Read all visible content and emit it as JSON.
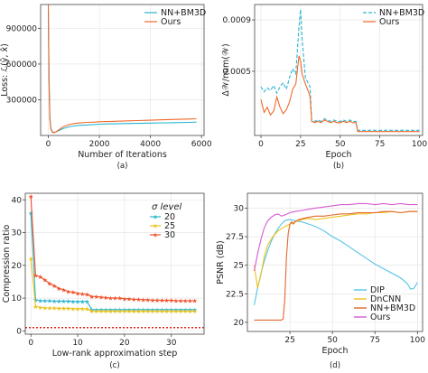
{
  "chart_data": [
    {
      "id": "a",
      "type": "line",
      "caption": "(a)",
      "xlabel": "Number of Iterations",
      "ylabel": "Loss: ℒ(ŷ, x̂)",
      "xlim": [
        -300,
        6100
      ],
      "ylim": [
        0,
        1100000
      ],
      "xticks": [
        0,
        2000,
        4000,
        6000
      ],
      "yticks": [
        300000,
        600000,
        900000
      ],
      "ytick_labels": [
        "300000",
        "600000",
        "900000"
      ],
      "grid": true,
      "legend": "top-right",
      "series": [
        {
          "name": "NN+BM3D",
          "color": "#2ab5cf",
          "dash": "",
          "x": [
            0,
            30,
            60,
            100,
            150,
            200,
            300,
            400,
            500,
            600,
            800,
            1000,
            1200,
            1500,
            1800,
            2000,
            2500,
            3000,
            3500,
            4000,
            4500,
            5000,
            5500,
            5800
          ],
          "y": [
            1050000,
            500000,
            160000,
            60000,
            35000,
            25000,
            30000,
            40000,
            50000,
            60000,
            72000,
            80000,
            85000,
            88000,
            92000,
            95000,
            98000,
            100000,
            102000,
            104000,
            106000,
            108000,
            110000,
            112000
          ]
        },
        {
          "name": "Ours",
          "color": "#f0692a",
          "dash": "",
          "x": [
            0,
            30,
            60,
            100,
            150,
            200,
            300,
            400,
            500,
            600,
            800,
            1000,
            1200,
            1500,
            1800,
            2000,
            2500,
            3000,
            3500,
            4000,
            4500,
            5000,
            5500,
            5800
          ],
          "y": [
            1100000,
            450000,
            140000,
            55000,
            30000,
            22000,
            30000,
            45000,
            60000,
            75000,
            90000,
            100000,
            105000,
            110000,
            112000,
            115000,
            118000,
            122000,
            125000,
            128000,
            132000,
            135000,
            138000,
            140000
          ]
        }
      ]
    },
    {
      "id": "b",
      "type": "line",
      "caption": "(b)",
      "xlabel": "Epoch",
      "ylabel": "Δ𝒲/num(𝒲)",
      "xlim": [
        -4,
        102
      ],
      "ylim": [
        0,
        0.00102
      ],
      "xticks": [
        0,
        25,
        50,
        75,
        100
      ],
      "xtick_labels": [
        "0",
        "25",
        "50",
        "75",
        "100"
      ],
      "yticks": [
        0.0005,
        0.0009
      ],
      "ytick_labels": [
        "0.0005",
        "0.0009"
      ],
      "grid": true,
      "legend": "top-right",
      "series": [
        {
          "name": "NN+BM3D",
          "color": "#2ab5cf",
          "dash": "4,2",
          "x": [
            0,
            2,
            4,
            6,
            8,
            10,
            12,
            14,
            16,
            18,
            20,
            22,
            24,
            25,
            26,
            28,
            30,
            31,
            32,
            34,
            36,
            38,
            40,
            42,
            44,
            46,
            48,
            50,
            52,
            54,
            56,
            58,
            60,
            61,
            62,
            64,
            66,
            68,
            70,
            72,
            74,
            76,
            78,
            80,
            82,
            84,
            86,
            88,
            90,
            92,
            94,
            96,
            98,
            100
          ],
          "y": [
            0.00038,
            0.00034,
            0.00037,
            0.00035,
            0.00039,
            0.00033,
            0.00038,
            0.00041,
            0.00036,
            0.00045,
            0.00052,
            0.00048,
            0.00085,
            0.00098,
            0.00075,
            0.00045,
            0.0004,
            0.00038,
            0.00012,
            0.00011,
            0.00012,
            0.00011,
            0.00013,
            0.00012,
            0.00011,
            0.00012,
            0.00011,
            0.00011,
            0.00012,
            0.00011,
            0.00012,
            0.00011,
            0.00011,
            4e-05,
            4e-05,
            4e-05,
            4e-05,
            4e-05,
            4e-05,
            4e-05,
            4e-05,
            4e-05,
            4e-05,
            4e-05,
            4e-05,
            4e-05,
            4e-05,
            4e-05,
            4e-05,
            4e-05,
            4e-05,
            4e-05,
            4e-05,
            4e-05
          ]
        },
        {
          "name": "Ours",
          "color": "#f0692a",
          "dash": "",
          "x": [
            0,
            2,
            4,
            6,
            8,
            10,
            12,
            14,
            16,
            18,
            20,
            22,
            24,
            25,
            26,
            28,
            30,
            31,
            32,
            34,
            36,
            38,
            40,
            42,
            44,
            46,
            48,
            50,
            52,
            54,
            56,
            58,
            60,
            61,
            62,
            64,
            66,
            68,
            70,
            72,
            74,
            76,
            78,
            80,
            82,
            84,
            86,
            88,
            90,
            92,
            94,
            96,
            98,
            100
          ],
          "y": [
            0.00028,
            0.00018,
            0.00022,
            0.00016,
            0.00019,
            0.0003,
            0.00022,
            0.00017,
            0.0002,
            0.00026,
            0.00036,
            0.0004,
            0.00062,
            0.00058,
            0.00048,
            0.0004,
            0.00034,
            0.0003,
            0.00011,
            0.0001,
            0.00011,
            0.0001,
            0.00012,
            0.00011,
            0.0001,
            0.00011,
            0.0001,
            0.0001,
            0.00011,
            0.0001,
            0.00011,
            0.0001,
            0.0001,
            3e-05,
            3e-05,
            3e-05,
            3e-05,
            3e-05,
            3e-05,
            3e-05,
            3e-05,
            3e-05,
            3e-05,
            3e-05,
            3e-05,
            3e-05,
            3e-05,
            3e-05,
            3e-05,
            3e-05,
            3e-05,
            3e-05,
            3e-05,
            3e-05
          ]
        }
      ]
    },
    {
      "id": "c",
      "type": "line",
      "caption": "(c)",
      "xlabel": "Low-rank approximation step",
      "ylabel": "Compression ratio",
      "xlim": [
        -1.2,
        37
      ],
      "ylim": [
        -1,
        42
      ],
      "xticks": [
        0,
        10,
        20,
        30
      ],
      "yticks": [
        0,
        10,
        20,
        30,
        40
      ],
      "grid": true,
      "legend": "top-right",
      "legend_title": "σ level",
      "baseline": {
        "y": 1,
        "color": "#e0201b"
      },
      "series": [
        {
          "name": "20",
          "color": "#2ab5cf",
          "marker": "★",
          "x": [
            0,
            1,
            2,
            3,
            4,
            5,
            6,
            7,
            8,
            9,
            10,
            11,
            12,
            13,
            14,
            15,
            16,
            17,
            18,
            19,
            20,
            21,
            22,
            23,
            24,
            25,
            26,
            27,
            28,
            29,
            30,
            31,
            32,
            33,
            34,
            35
          ],
          "y": [
            36,
            9.5,
            9.2,
            9.2,
            9.2,
            9.1,
            9.1,
            9.1,
            9.1,
            9.0,
            9.0,
            9.0,
            9.0,
            6.5,
            6.5,
            6.5,
            6.5,
            6.5,
            6.5,
            6.5,
            6.5,
            6.5,
            6.5,
            6.5,
            6.5,
            6.5,
            6.5,
            6.5,
            6.5,
            6.5,
            6.5,
            6.5,
            6.5,
            6.5,
            6.5,
            6.5
          ]
        },
        {
          "name": "25",
          "color": "#ecc21c",
          "marker": "★",
          "x": [
            0,
            1,
            2,
            3,
            4,
            5,
            6,
            7,
            8,
            9,
            10,
            11,
            12,
            13,
            14,
            15,
            16,
            17,
            18,
            19,
            20,
            21,
            22,
            23,
            24,
            25,
            26,
            27,
            28,
            29,
            30,
            31,
            32,
            33,
            34,
            35
          ],
          "y": [
            22,
            7.5,
            7.2,
            7.0,
            7.0,
            7.0,
            6.9,
            6.9,
            6.9,
            6.8,
            6.8,
            6.8,
            6.7,
            6.0,
            6.0,
            6.0,
            6.0,
            6.0,
            6.0,
            6.0,
            6.0,
            6.0,
            6.0,
            6.0,
            6.0,
            6.0,
            6.0,
            6.0,
            6.0,
            6.0,
            6.0,
            6.0,
            6.0,
            6.0,
            6.0,
            6.0
          ]
        },
        {
          "name": "30",
          "color": "#f0502a",
          "marker": "★",
          "x": [
            0,
            1,
            2,
            3,
            4,
            5,
            6,
            7,
            8,
            9,
            10,
            11,
            12,
            13,
            14,
            15,
            16,
            17,
            18,
            19,
            20,
            21,
            22,
            23,
            24,
            25,
            26,
            27,
            28,
            29,
            30,
            31,
            32,
            33,
            34,
            35
          ],
          "y": [
            41,
            17,
            16.5,
            15.5,
            14.5,
            13.8,
            13.0,
            12.5,
            12.0,
            11.8,
            11.5,
            11.3,
            11.2,
            10.5,
            10.5,
            10.3,
            10.2,
            10.0,
            10.0,
            10.0,
            9.8,
            9.8,
            9.6,
            9.6,
            9.5,
            9.5,
            9.4,
            9.4,
            9.3,
            9.3,
            9.3,
            9.2,
            9.2,
            9.2,
            9.2,
            9.2
          ]
        }
      ]
    },
    {
      "id": "d",
      "type": "line",
      "caption": "(d)",
      "xlabel": "Epoch",
      "ylabel": "PSNR (dB)",
      "xlim": [
        0,
        103
      ],
      "ylim": [
        19.2,
        31.3
      ],
      "xticks": [
        25,
        50,
        75,
        100
      ],
      "yticks": [
        20,
        22.5,
        25,
        27.5,
        30
      ],
      "ytick_labels": [
        "20",
        "22.5",
        "25",
        "27.5",
        "30"
      ],
      "grid": true,
      "legend": "bottom-right",
      "series": [
        {
          "name": "DIP",
          "color": "#55c3e8",
          "x": [
            4,
            6,
            8,
            10,
            12,
            14,
            16,
            18,
            20,
            22,
            25,
            28,
            32,
            36,
            40,
            45,
            50,
            55,
            60,
            65,
            70,
            75,
            80,
            85,
            90,
            94,
            96,
            98,
            100
          ],
          "y": [
            21.5,
            23.0,
            24.3,
            25.4,
            26.3,
            27.1,
            27.7,
            28.2,
            28.6,
            28.9,
            29.0,
            28.9,
            28.8,
            28.6,
            28.4,
            28.0,
            27.5,
            27.1,
            26.6,
            26.1,
            25.6,
            25.1,
            24.7,
            24.3,
            23.9,
            23.4,
            22.9,
            23.0,
            23.5
          ]
        },
        {
          "name": "DnCNN",
          "color": "#ecc21c",
          "x": [
            4,
            6,
            8,
            10,
            12,
            15,
            18,
            21,
            25,
            30,
            35,
            40,
            45,
            50,
            55,
            60,
            65,
            70,
            75,
            80,
            85,
            90,
            95,
            100
          ],
          "y": [
            25.0,
            23.0,
            24.2,
            25.8,
            26.8,
            27.5,
            28.0,
            28.3,
            28.6,
            28.9,
            29.1,
            29.0,
            29.1,
            29.2,
            29.3,
            29.4,
            29.5,
            29.5,
            29.6,
            29.6,
            29.7,
            29.6,
            29.7,
            29.7
          ]
        },
        {
          "name": "NN+BM3D",
          "color": "#e2682f",
          "x": [
            4,
            10,
            16,
            20,
            21,
            22,
            23,
            24,
            25,
            26,
            27,
            28,
            30,
            33,
            36,
            40,
            45,
            50,
            55,
            60,
            65,
            70,
            75,
            80,
            85,
            90,
            95,
            100
          ],
          "y": [
            20.2,
            20.2,
            20.2,
            20.2,
            20.3,
            22.0,
            25.8,
            27.8,
            28.6,
            28.8,
            28.6,
            28.8,
            29.0,
            29.1,
            29.2,
            29.3,
            29.3,
            29.4,
            29.5,
            29.5,
            29.6,
            29.6,
            29.6,
            29.7,
            29.7,
            29.6,
            29.7,
            29.7
          ]
        },
        {
          "name": "Ours",
          "color": "#d65ad2",
          "x": [
            4,
            6,
            8,
            10,
            12,
            14,
            16,
            18,
            20,
            22,
            25,
            28,
            32,
            36,
            40,
            45,
            50,
            55,
            60,
            65,
            70,
            75,
            80,
            85,
            90,
            95,
            100
          ],
          "y": [
            24.5,
            26.0,
            27.3,
            28.3,
            28.9,
            29.2,
            29.4,
            29.5,
            29.3,
            29.4,
            29.6,
            29.7,
            29.8,
            29.9,
            30.0,
            30.1,
            30.2,
            30.3,
            30.3,
            30.4,
            30.4,
            30.3,
            30.4,
            30.3,
            30.4,
            30.3,
            30.3
          ]
        }
      ]
    }
  ]
}
